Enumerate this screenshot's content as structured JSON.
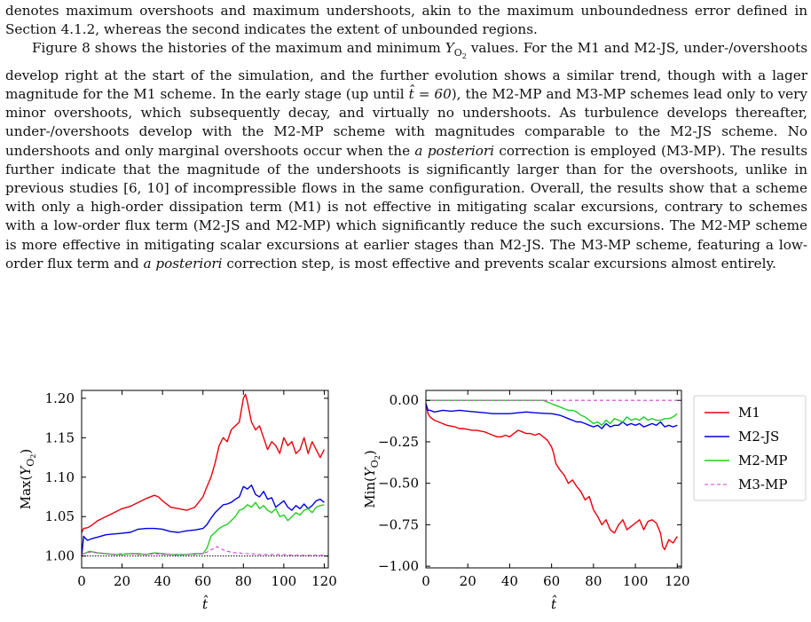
{
  "text": {
    "p1": "denotes maximum overshoots and maximum undershoots, akin to the maximum unboundedness error defined in Section 4.1.2, whereas the second indicates the extent of unbounded regions.",
    "p2a": "Figure 8 shows the histories of the maximum and minimum ",
    "p2_sym": "Y",
    "p2_sub": "O",
    "p2_subsub": "2",
    "p2b": " values. For the M1 and M2-JS, under-/overshoots develop right at the start of the simulation, and the further evolution shows a similar trend, though with a lager magnitude for the M1 scheme. In the early stage (up until ",
    "p2_t": "t̂ = 60",
    "p2c": "), the M2-MP and M3-MP schemes lead only to very minor overshoots, which subsequently decay, and virtually no undershoots. As turbulence develops thereafter, under-/overshoots develop with the M2-MP scheme with magnitudes comparable to the M2-JS scheme. No undershoots and only marginal overshoots occur when the ",
    "p2_em1": "a posteriori",
    "p2d": " correction is employed (M3-MP). The results further indicate that the magnitude of the undershoots is significantly larger than for the overshoots, unlike in previous studies [6, 10] of incompressible flows in the same configuration. Overall, the results show that a scheme with only a high-order dissipation term (M1) is not effective in mitigating scalar excursions, contrary to schemes with a low-order flux term (M2-JS and M2-MP) which significantly reduce the such excursions. The M2-MP scheme is more effective in mitigating scalar excursions at earlier stages than M2-JS. The M3-MP scheme, featuring a low-order flux term and ",
    "p2_em2": "a posteriori",
    "p2e": " correction step, is most effective and prevents scalar excursions almost entirely."
  },
  "colors": {
    "M1": "#e8000b",
    "M2-JS": "#0000e0",
    "M2-MP": "#22cc22",
    "M3-MP": "#d040d0"
  },
  "chart_data": [
    {
      "type": "line",
      "xlabel": "t̂",
      "ylabel": "Max(Y_O2)",
      "xlim": [
        0,
        122
      ],
      "ylim": [
        0.985,
        1.21
      ],
      "xticks": [
        0,
        20,
        40,
        60,
        80,
        100,
        120
      ],
      "yticks": [
        1.0,
        1.05,
        1.1,
        1.15,
        1.2
      ],
      "ytick_labels": [
        "1.00",
        "1.05",
        "1.10",
        "1.15",
        "1.20"
      ],
      "reference_line": 1.0,
      "series": [
        {
          "name": "M1",
          "style": "solid",
          "x": [
            0,
            1,
            3,
            5,
            8,
            12,
            16,
            20,
            24,
            28,
            32,
            36,
            38,
            40,
            44,
            48,
            52,
            56,
            60,
            62,
            64,
            66,
            68,
            70,
            72,
            74,
            76,
            78,
            80,
            81,
            82,
            84,
            86,
            88,
            90,
            92,
            94,
            96,
            98,
            100,
            102,
            104,
            106,
            108,
            110,
            112,
            114,
            116,
            118,
            120
          ],
          "y": [
            1.03,
            1.035,
            1.036,
            1.039,
            1.045,
            1.05,
            1.055,
            1.06,
            1.063,
            1.068,
            1.073,
            1.077,
            1.075,
            1.07,
            1.062,
            1.06,
            1.058,
            1.062,
            1.075,
            1.088,
            1.1,
            1.118,
            1.14,
            1.15,
            1.145,
            1.16,
            1.165,
            1.17,
            1.2,
            1.205,
            1.195,
            1.17,
            1.16,
            1.165,
            1.15,
            1.135,
            1.145,
            1.14,
            1.13,
            1.15,
            1.14,
            1.145,
            1.13,
            1.135,
            1.15,
            1.13,
            1.145,
            1.135,
            1.125,
            1.135
          ]
        },
        {
          "name": "M2-JS",
          "style": "solid",
          "x": [
            0,
            1,
            2,
            3,
            5,
            8,
            12,
            16,
            20,
            24,
            28,
            32,
            36,
            40,
            44,
            48,
            52,
            56,
            60,
            62,
            64,
            66,
            68,
            70,
            72,
            74,
            76,
            78,
            80,
            82,
            84,
            86,
            88,
            90,
            92,
            94,
            96,
            98,
            100,
            102,
            104,
            106,
            108,
            110,
            112,
            114,
            116,
            118,
            120
          ],
          "y": [
            1.0,
            1.025,
            1.022,
            1.02,
            1.022,
            1.024,
            1.027,
            1.028,
            1.029,
            1.03,
            1.034,
            1.035,
            1.035,
            1.034,
            1.031,
            1.03,
            1.032,
            1.033,
            1.035,
            1.04,
            1.048,
            1.055,
            1.06,
            1.065,
            1.066,
            1.068,
            1.072,
            1.075,
            1.088,
            1.085,
            1.09,
            1.078,
            1.075,
            1.082,
            1.072,
            1.074,
            1.062,
            1.066,
            1.07,
            1.062,
            1.058,
            1.064,
            1.06,
            1.066,
            1.06,
            1.064,
            1.07,
            1.072,
            1.068
          ]
        },
        {
          "name": "M2-MP",
          "style": "solid",
          "x": [
            0,
            2,
            4,
            8,
            12,
            16,
            20,
            24,
            28,
            32,
            36,
            40,
            44,
            48,
            52,
            56,
            60,
            62,
            64,
            66,
            68,
            70,
            72,
            74,
            76,
            78,
            80,
            82,
            84,
            86,
            88,
            90,
            92,
            94,
            96,
            98,
            100,
            102,
            104,
            106,
            108,
            110,
            112,
            114,
            116,
            118,
            120
          ],
          "y": [
            1.002,
            1.004,
            1.006,
            1.004,
            1.003,
            1.002,
            1.002,
            1.003,
            1.003,
            1.002,
            1.004,
            1.003,
            1.002,
            1.002,
            1.002,
            1.003,
            1.003,
            1.01,
            1.025,
            1.03,
            1.035,
            1.038,
            1.04,
            1.045,
            1.05,
            1.058,
            1.06,
            1.065,
            1.062,
            1.068,
            1.06,
            1.064,
            1.058,
            1.055,
            1.06,
            1.05,
            1.052,
            1.045,
            1.05,
            1.055,
            1.052,
            1.058,
            1.06,
            1.055,
            1.062,
            1.064,
            1.065
          ]
        },
        {
          "name": "M3-MP",
          "style": "dashed",
          "x": [
            0,
            2,
            4,
            8,
            12,
            16,
            20,
            24,
            28,
            32,
            36,
            40,
            44,
            48,
            52,
            56,
            60,
            62,
            64,
            66,
            67,
            68,
            70,
            72,
            74,
            76,
            78,
            80,
            84,
            88,
            92,
            96,
            100,
            104,
            108,
            112,
            116,
            120
          ],
          "y": [
            1.002,
            1.004,
            1.005,
            1.004,
            1.003,
            1.002,
            1.003,
            1.003,
            1.002,
            1.002,
            1.003,
            1.002,
            1.002,
            1.001,
            1.002,
            1.002,
            1.003,
            1.005,
            1.008,
            1.01,
            1.012,
            1.01,
            1.008,
            1.006,
            1.005,
            1.004,
            1.004,
            1.003,
            1.003,
            1.002,
            1.002,
            1.002,
            1.002,
            1.001,
            1.001,
            1.001,
            1.001,
            1.001
          ]
        }
      ]
    },
    {
      "type": "line",
      "xlabel": "t̂",
      "ylabel": "Min(Y_O2)",
      "xlim": [
        0,
        122
      ],
      "ylim": [
        -1.01,
        0.06
      ],
      "xticks": [
        0,
        20,
        40,
        60,
        80,
        100,
        120
      ],
      "yticks": [
        0.0,
        -0.25,
        -0.5,
        -0.75,
        -1.0
      ],
      "ytick_labels": [
        "0.00",
        "−0.25",
        "−0.50",
        "−0.75",
        "−1.00"
      ],
      "series": [
        {
          "name": "M1",
          "style": "solid",
          "x": [
            0,
            1,
            2,
            3,
            4,
            6,
            8,
            10,
            12,
            14,
            16,
            18,
            20,
            22,
            24,
            26,
            28,
            30,
            32,
            34,
            36,
            38,
            40,
            42,
            44,
            46,
            48,
            50,
            52,
            54,
            56,
            58,
            60,
            61,
            62,
            63,
            64,
            66,
            68,
            70,
            72,
            74,
            76,
            78,
            80,
            82,
            84,
            86,
            88,
            90,
            92,
            94,
            96,
            98,
            100,
            102,
            104,
            106,
            108,
            110,
            112,
            113,
            114,
            116,
            118,
            120
          ],
          "y": [
            -0.02,
            -0.08,
            -0.1,
            -0.11,
            -0.12,
            -0.13,
            -0.14,
            -0.15,
            -0.155,
            -0.16,
            -0.17,
            -0.17,
            -0.175,
            -0.18,
            -0.18,
            -0.185,
            -0.19,
            -0.2,
            -0.21,
            -0.22,
            -0.22,
            -0.21,
            -0.22,
            -0.2,
            -0.18,
            -0.19,
            -0.2,
            -0.2,
            -0.21,
            -0.2,
            -0.22,
            -0.24,
            -0.28,
            -0.32,
            -0.38,
            -0.4,
            -0.42,
            -0.45,
            -0.5,
            -0.48,
            -0.52,
            -0.55,
            -0.6,
            -0.58,
            -0.66,
            -0.7,
            -0.75,
            -0.72,
            -0.78,
            -0.8,
            -0.75,
            -0.72,
            -0.78,
            -0.76,
            -0.74,
            -0.72,
            -0.78,
            -0.73,
            -0.72,
            -0.74,
            -0.8,
            -0.88,
            -0.9,
            -0.84,
            -0.86,
            -0.82
          ]
        },
        {
          "name": "M2-JS",
          "style": "solid",
          "x": [
            0,
            1,
            2,
            4,
            6,
            8,
            12,
            16,
            20,
            24,
            28,
            32,
            36,
            40,
            44,
            48,
            52,
            56,
            60,
            62,
            64,
            66,
            68,
            70,
            72,
            74,
            76,
            78,
            80,
            82,
            84,
            86,
            88,
            90,
            92,
            94,
            96,
            98,
            100,
            102,
            104,
            106,
            108,
            110,
            112,
            114,
            116,
            118,
            120
          ],
          "y": [
            -0.02,
            -0.06,
            -0.06,
            -0.07,
            -0.065,
            -0.06,
            -0.065,
            -0.06,
            -0.065,
            -0.07,
            -0.075,
            -0.08,
            -0.08,
            -0.08,
            -0.075,
            -0.07,
            -0.075,
            -0.078,
            -0.08,
            -0.085,
            -0.09,
            -0.1,
            -0.11,
            -0.12,
            -0.13,
            -0.13,
            -0.14,
            -0.15,
            -0.16,
            -0.15,
            -0.17,
            -0.14,
            -0.16,
            -0.15,
            -0.15,
            -0.13,
            -0.15,
            -0.14,
            -0.15,
            -0.14,
            -0.16,
            -0.15,
            -0.14,
            -0.15,
            -0.13,
            -0.16,
            -0.15,
            -0.16,
            -0.15
          ]
        },
        {
          "name": "M2-MP",
          "style": "solid",
          "x": [
            0,
            10,
            20,
            30,
            40,
            50,
            56,
            58,
            60,
            62,
            64,
            66,
            68,
            70,
            72,
            74,
            76,
            78,
            80,
            82,
            84,
            86,
            88,
            90,
            92,
            94,
            96,
            98,
            100,
            102,
            104,
            106,
            108,
            110,
            112,
            114,
            116,
            118,
            120
          ],
          "y": [
            0.0,
            0.0,
            0.0,
            0.0,
            0.0,
            0.0,
            0.0,
            -0.01,
            -0.02,
            -0.03,
            -0.04,
            -0.05,
            -0.06,
            -0.06,
            -0.07,
            -0.09,
            -0.1,
            -0.12,
            -0.14,
            -0.13,
            -0.15,
            -0.12,
            -0.14,
            -0.11,
            -0.12,
            -0.13,
            -0.1,
            -0.12,
            -0.11,
            -0.12,
            -0.1,
            -0.12,
            -0.11,
            -0.12,
            -0.12,
            -0.11,
            -0.11,
            -0.1,
            -0.08
          ]
        },
        {
          "name": "M3-MP",
          "style": "dashed",
          "x": [
            0,
            120
          ],
          "y": [
            0.0,
            0.0
          ]
        }
      ]
    }
  ],
  "legend": {
    "placement": "right",
    "entries": [
      "M1",
      "M2-JS",
      "M2-MP",
      "M3-MP"
    ]
  }
}
